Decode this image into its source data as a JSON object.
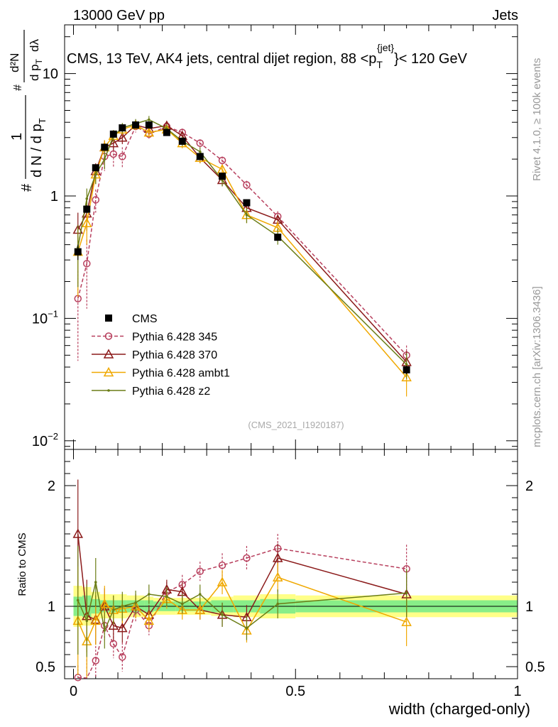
{
  "header": {
    "left": "13000 GeV pp",
    "right": "Jets"
  },
  "title": "CMS, 13 TeV, AK4 jets, central dijet region, 88 <p",
  "title_sub": "T",
  "title_sup": "{jet}",
  "title_tail": "}< 120 GeV",
  "side_labels": {
    "rivet": "Rivet 4.1.0, ≥ 100k events",
    "mcplots": "mcplots.cern.ch [arXiv:1306.3436]"
  },
  "watermark": "(CMS_2021_I1920187)",
  "y_axis_main": {
    "scale": "log",
    "ylim": [
      0.0085,
      25
    ],
    "ticks": [
      {
        "value": 0.01,
        "base": "10",
        "exp": "−2"
      },
      {
        "value": 0.1,
        "base": "10",
        "exp": "−1"
      },
      {
        "value": 1,
        "label": "1"
      },
      {
        "value": 10,
        "label": "10"
      }
    ],
    "label_parts": {
      "hash": "#",
      "frac1_num": "1",
      "frac1_den": "d N / d p",
      "frac1_den_sub": "T",
      "hash2": "#",
      "frac2_num": "d²N",
      "frac2_den": "d p",
      "frac2_den_sub": "T",
      "frac2_den_tail": "dλ"
    }
  },
  "y_axis_ratio": {
    "label": "Ratio to CMS",
    "ylim": [
      0.4,
      2.3
    ],
    "ticks": [
      {
        "value": 0.5,
        "label": "0.5"
      },
      {
        "value": 1,
        "label": "1"
      },
      {
        "value": 2,
        "label": "2"
      }
    ]
  },
  "x_axis": {
    "label": "width (charged-only)",
    "xlim": [
      -0.02,
      1.0
    ],
    "ticks": [
      {
        "value": 0,
        "label": "0"
      },
      {
        "value": 0.5,
        "label": "0.5"
      },
      {
        "value": 1,
        "label": "1"
      }
    ]
  },
  "legend": [
    {
      "key": "cms",
      "label": "CMS"
    },
    {
      "key": "p345",
      "label": "Pythia 6.428 345"
    },
    {
      "key": "p370",
      "label": "Pythia 6.428 370"
    },
    {
      "key": "ambt1",
      "label": "Pythia 6.428 ambt1"
    },
    {
      "key": "z2",
      "label": "Pythia 6.428 z2"
    }
  ],
  "chart_data": {
    "type": "scatter",
    "title": "CMS, 13 TeV, AK4 jets, central dijet region, 88 < pT(jet) < 120 GeV",
    "xlabel": "width (charged-only)",
    "ylabel": "1/(dN/dpT) d²N/(dpT dλ)",
    "x": [
      0.01,
      0.03,
      0.05,
      0.07,
      0.09,
      0.11,
      0.14,
      0.17,
      0.21,
      0.245,
      0.285,
      0.335,
      0.39,
      0.46,
      0.75
    ],
    "bin_edges": [
      0,
      0.02,
      0.04,
      0.06,
      0.08,
      0.1,
      0.12,
      0.16,
      0.18,
      0.23,
      0.26,
      0.31,
      0.36,
      0.42,
      0.5,
      1.0
    ],
    "series": [
      {
        "name": "CMS",
        "key": "cms",
        "color": "#000000",
        "marker": "square",
        "line": "none",
        "values": [
          0.35,
          0.78,
          1.7,
          2.5,
          3.2,
          3.6,
          3.8,
          3.8,
          3.3,
          2.8,
          2.1,
          1.45,
          0.88,
          0.46,
          0.038
        ],
        "errors": [
          0.05,
          0.06,
          0.08,
          0.1,
          0.1,
          0.12,
          0.12,
          0.12,
          0.1,
          0.1,
          0.08,
          0.06,
          0.05,
          0.03,
          0.003
        ]
      },
      {
        "name": "Pythia 6.428 345",
        "key": "p345",
        "color": "#b8405e",
        "marker": "circle-open",
        "line": "dashed",
        "values": [
          0.145,
          0.28,
          0.93,
          2.1,
          2.2,
          2.1,
          3.7,
          3.2,
          3.7,
          3.3,
          2.7,
          1.95,
          1.23,
          0.68,
          0.05
        ],
        "errors": [
          0.1,
          0.16,
          0.2,
          0.5,
          0.5,
          0.4,
          0.4,
          0.3,
          0.3,
          0.25,
          0.2,
          0.15,
          0.1,
          0.07,
          0.01
        ]
      },
      {
        "name": "Pythia 6.428 370",
        "key": "p370",
        "color": "#8b1a1a",
        "marker": "triangle-open",
        "line": "solid",
        "values": [
          0.53,
          0.72,
          1.6,
          2.5,
          2.7,
          3.0,
          3.8,
          3.55,
          3.75,
          3.1,
          2.05,
          1.35,
          0.8,
          0.64,
          0.044
        ],
        "errors": [
          0.2,
          0.2,
          0.25,
          0.35,
          0.35,
          0.35,
          0.35,
          0.3,
          0.3,
          0.25,
          0.2,
          0.15,
          0.1,
          0.07,
          0.01
        ]
      },
      {
        "name": "Pythia 6.428 ambt1",
        "key": "ambt1",
        "color": "#f0a800",
        "marker": "triangle-open",
        "line": "solid",
        "values": [
          0.35,
          0.6,
          1.5,
          2.5,
          3.1,
          3.5,
          3.8,
          3.3,
          3.5,
          2.7,
          2.05,
          1.65,
          0.7,
          0.55,
          0.033
        ],
        "errors": [
          0.2,
          0.2,
          0.25,
          0.35,
          0.35,
          0.35,
          0.35,
          0.3,
          0.3,
          0.25,
          0.2,
          0.15,
          0.1,
          0.07,
          0.01
        ]
      },
      {
        "name": "Pythia 6.428 z2",
        "key": "z2",
        "color": "#6b7d16",
        "marker": "dot",
        "line": "solid",
        "values": [
          0.38,
          0.95,
          1.5,
          2.0,
          3.1,
          3.6,
          3.9,
          4.2,
          3.55,
          2.8,
          2.3,
          1.35,
          0.7,
          0.47,
          0.042
        ],
        "errors": [
          0.2,
          0.2,
          0.25,
          0.35,
          0.35,
          0.35,
          0.35,
          0.3,
          0.3,
          0.25,
          0.2,
          0.15,
          0.1,
          0.07,
          0.01
        ]
      }
    ],
    "ratio": {
      "ylabel": "Ratio to CMS",
      "ylim": [
        0.4,
        2.3
      ],
      "band_green": [
        0.08,
        0.09,
        0.06,
        0.05,
        0.05,
        0.05,
        0.05,
        0.05,
        0.04,
        0.04,
        0.04,
        0.05,
        0.05,
        0.06,
        0.05
      ],
      "band_yellow": [
        0.17,
        0.16,
        0.12,
        0.1,
        0.1,
        0.1,
        0.09,
        0.08,
        0.07,
        0.07,
        0.07,
        0.08,
        0.09,
        0.1,
        0.09
      ],
      "series": [
        {
          "key": "p345",
          "values": [
            0.41,
            0.36,
            0.55,
            0.84,
            0.69,
            0.58,
            0.97,
            0.84,
            1.12,
            1.18,
            1.29,
            1.34,
            1.4,
            1.48,
            1.31
          ],
          "errors": [
            0.1,
            0.2,
            0.15,
            0.12,
            0.12,
            0.12,
            0.1,
            0.08,
            0.08,
            0.08,
            0.08,
            0.1,
            0.1,
            0.12,
            0.2
          ]
        },
        {
          "key": "p370",
          "values": [
            1.6,
            0.92,
            0.89,
            1.0,
            0.84,
            0.82,
            1.0,
            0.93,
            1.14,
            1.12,
            0.97,
            0.93,
            0.91,
            1.4,
            1.1
          ],
          "errors": [
            0.45,
            0.3,
            0.2,
            0.15,
            0.12,
            0.12,
            0.1,
            0.08,
            0.08,
            0.08,
            0.08,
            0.1,
            0.1,
            0.12,
            0.2
          ]
        },
        {
          "key": "ambt1",
          "values": [
            0.88,
            0.71,
            0.88,
            1.02,
            0.97,
            0.98,
            1.0,
            0.88,
            1.06,
            0.97,
            0.97,
            1.2,
            0.8,
            1.24,
            0.87
          ],
          "errors": [
            0.45,
            0.3,
            0.2,
            0.15,
            0.12,
            0.12,
            0.1,
            0.08,
            0.08,
            0.08,
            0.08,
            0.1,
            0.1,
            0.12,
            0.2
          ]
        },
        {
          "key": "z2",
          "values": [
            1.05,
            0.88,
            1.2,
            0.8,
            0.97,
            1.0,
            1.03,
            1.1,
            1.08,
            1.02,
            1.1,
            0.93,
            0.82,
            1.02,
            1.11
          ],
          "errors": [
            0.45,
            0.3,
            0.2,
            0.15,
            0.12,
            0.12,
            0.1,
            0.08,
            0.08,
            0.08,
            0.08,
            0.1,
            0.1,
            0.12,
            0.2
          ]
        }
      ]
    }
  }
}
